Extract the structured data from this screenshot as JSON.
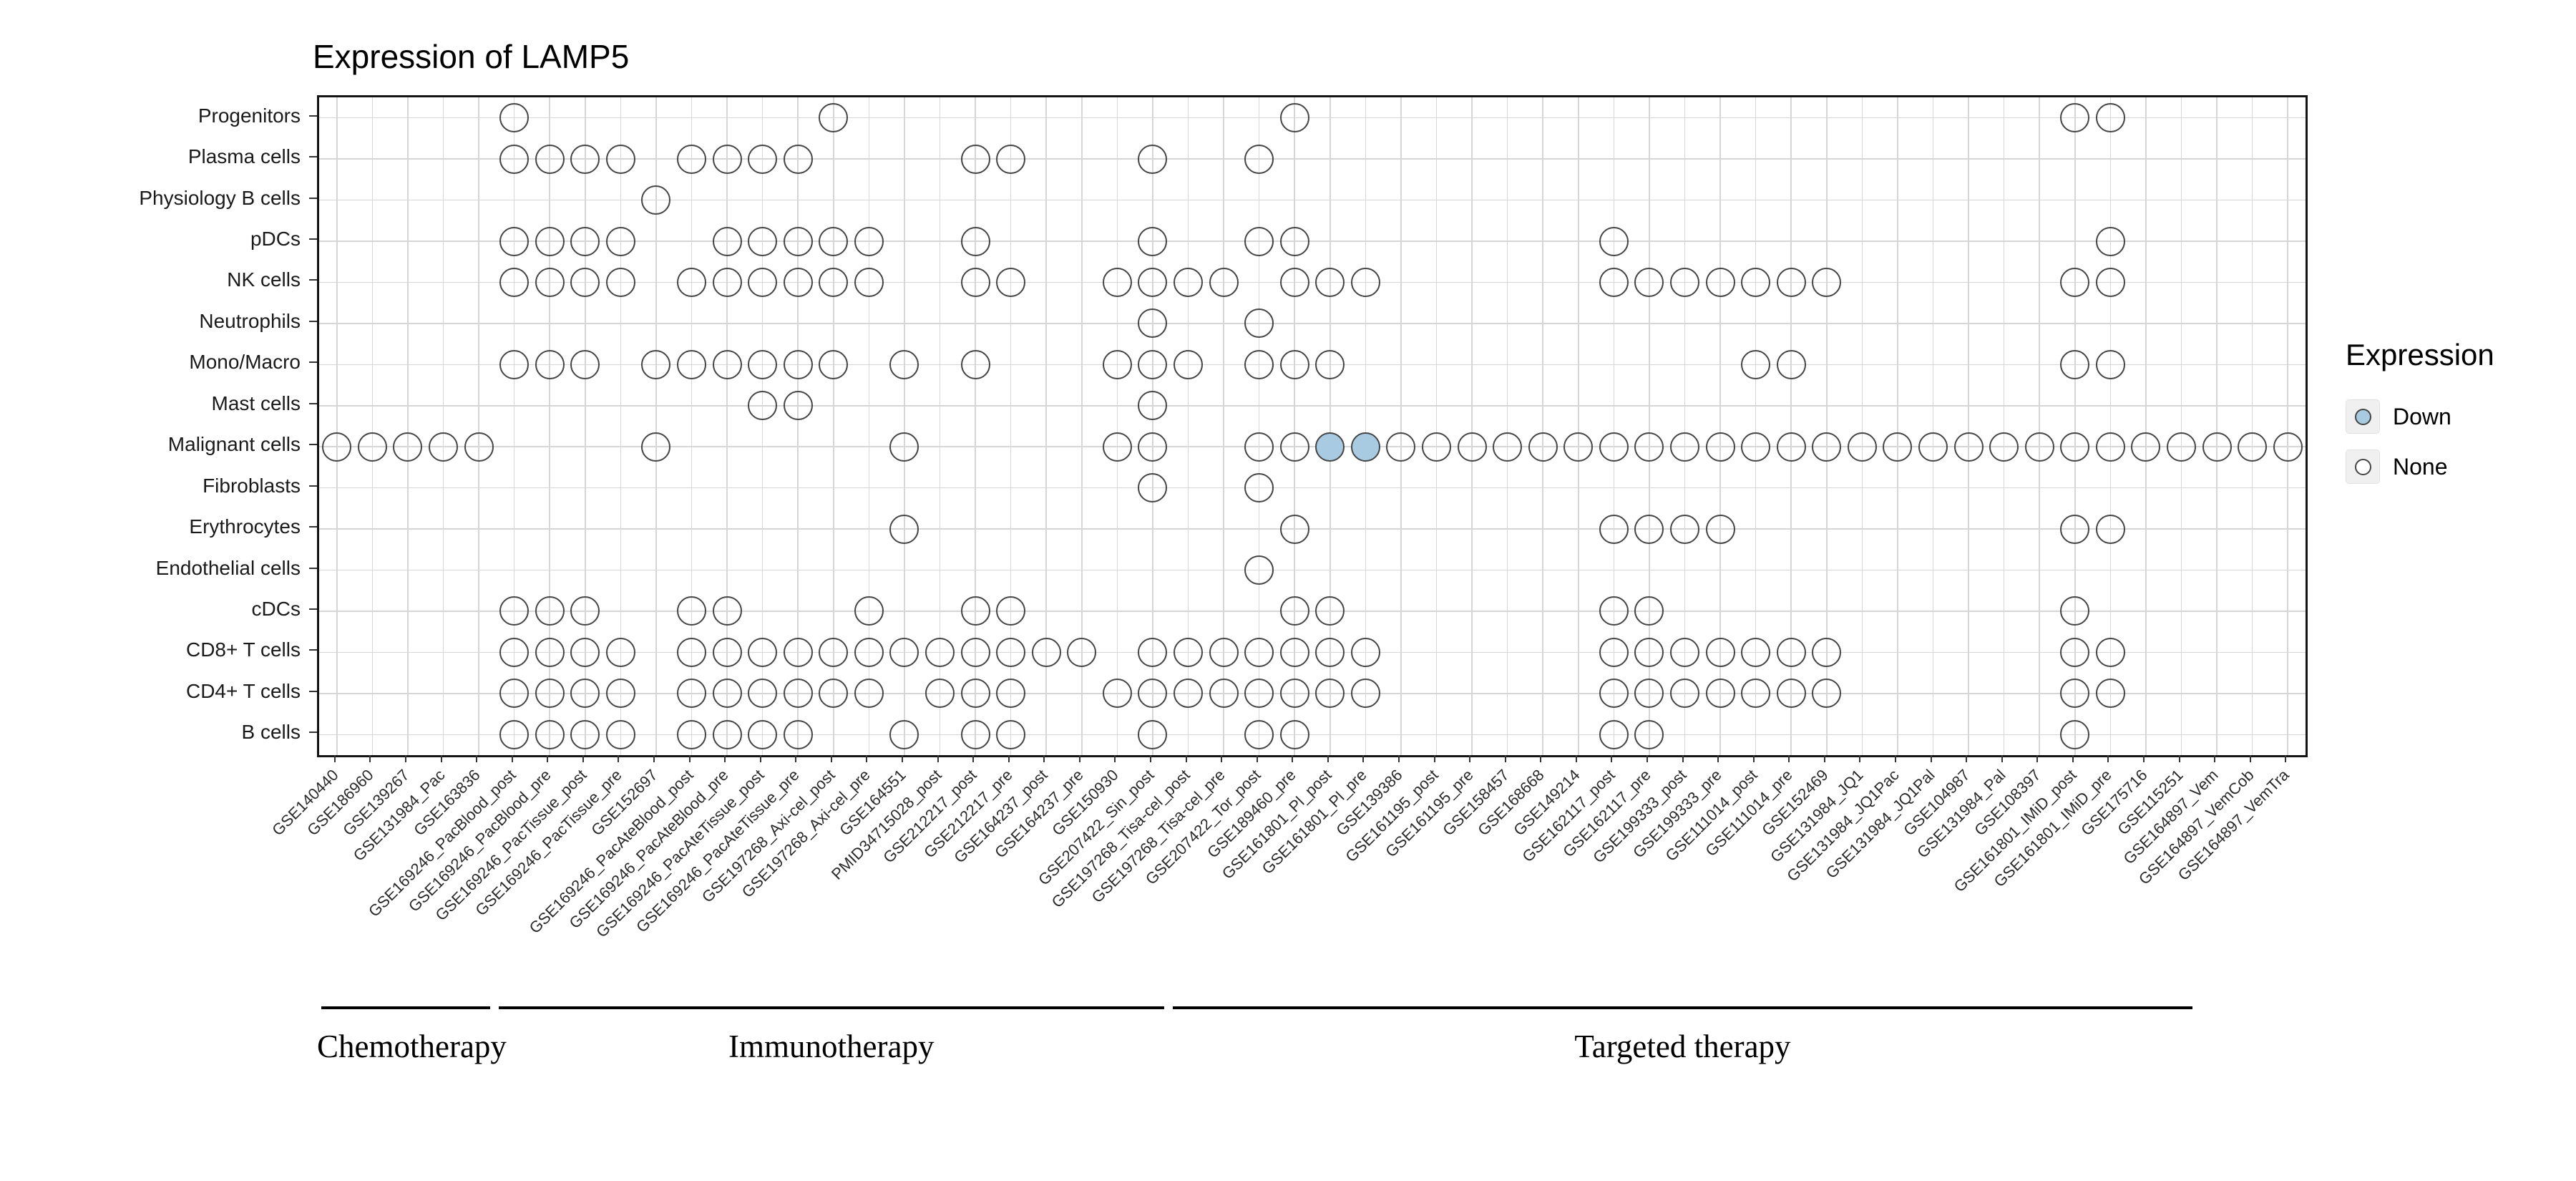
{
  "title": "Expression of LAMP5",
  "chart_data": {
    "type": "dot-matrix",
    "title": "Expression of LAMP5",
    "legend": {
      "title": "Expression",
      "items": [
        {
          "label": "Down",
          "fill": "#A8CBE2"
        },
        {
          "label": "None",
          "fill": "#FFFFFF"
        }
      ]
    },
    "rows": [
      "Progenitors",
      "Plasma cells",
      "Physiology B cells",
      "pDCs",
      "NK cells",
      "Neutrophils",
      "Mono/Macro",
      "Mast cells",
      "Malignant cells",
      "Fibroblasts",
      "Erythrocytes",
      "Endothelial cells",
      "cDCs",
      "CD8+ T cells",
      "CD4+ T cells",
      "B cells"
    ],
    "columns": [
      "GSE140440",
      "GSE186960",
      "GSE139267",
      "GSE131984_Pac",
      "GSE163836",
      "GSE169246_PacBlood_post",
      "GSE169246_PacBlood_pre",
      "GSE169246_PacTissue_post",
      "GSE169246_PacTissue_pre",
      "GSE152697",
      "GSE169246_PacAteBlood_post",
      "GSE169246_PacAteBlood_pre",
      "GSE169246_PacAteTissue_post",
      "GSE169246_PacAteTissue_pre",
      "GSE197268_Axi-cel_post",
      "GSE197268_Axi-cel_pre",
      "GSE164551",
      "PMID34715028_post",
      "GSE212217_post",
      "GSE212217_pre",
      "GSE164237_post",
      "GSE164237_pre",
      "GSE150930",
      "GSE207422_Sin_post",
      "GSE197268_Tisa-cel_post",
      "GSE197268_Tisa-cel_pre",
      "GSE207422_Tor_post",
      "GSE189460_pre",
      "GSE161801_Pl_post",
      "GSE161801_Pl_pre",
      "GSE139386",
      "GSE161195_post",
      "GSE161195_pre",
      "GSE158457",
      "GSE168668",
      "GSE149214",
      "GSE162117_post",
      "GSE162117_pre",
      "GSE199333_post",
      "GSE199333_pre",
      "GSE111014_post",
      "GSE111014_pre",
      "GSE152469",
      "GSE131984_JQ1",
      "GSE131984_JQ1Pac",
      "GSE131984_JQ1Pal",
      "GSE104987",
      "GSE131984_Pal",
      "GSE108397",
      "GSE161801_IMiD_post",
      "GSE161801_IMiD_pre",
      "GSE175716",
      "GSE115251",
      "GSE164897_Vem",
      "GSE164897_VemCob",
      "GSE164897_VemTra"
    ],
    "groups": [
      {
        "label": "Chemotherapy",
        "start": 0,
        "end": 4
      },
      {
        "label": "Immunotherapy",
        "start": 5,
        "end": 23
      },
      {
        "label": "Targeted therapy",
        "start": 24,
        "end": 52
      }
    ],
    "cells": [
      {
        "row": "Progenitors",
        "none": [
          5,
          14,
          27,
          49,
          50
        ],
        "down": []
      },
      {
        "row": "Plasma cells",
        "none": [
          5,
          6,
          7,
          8,
          10,
          11,
          12,
          13,
          18,
          19,
          23,
          26
        ],
        "down": []
      },
      {
        "row": "Physiology B cells",
        "none": [
          9
        ],
        "down": []
      },
      {
        "row": "pDCs",
        "none": [
          5,
          6,
          7,
          8,
          11,
          12,
          13,
          14,
          15,
          18,
          23,
          26,
          27,
          36,
          50
        ],
        "down": []
      },
      {
        "row": "NK cells",
        "none": [
          5,
          6,
          7,
          8,
          10,
          11,
          12,
          13,
          14,
          15,
          18,
          19,
          22,
          23,
          24,
          25,
          27,
          28,
          29,
          36,
          37,
          38,
          39,
          40,
          41,
          42,
          49,
          50
        ],
        "down": []
      },
      {
        "row": "Neutrophils",
        "none": [
          23,
          26
        ],
        "down": []
      },
      {
        "row": "Mono/Macro",
        "none": [
          5,
          6,
          7,
          9,
          10,
          11,
          12,
          13,
          14,
          16,
          18,
          22,
          23,
          24,
          26,
          27,
          28,
          40,
          41,
          49,
          50
        ],
        "down": []
      },
      {
        "row": "Mast cells",
        "none": [
          12,
          13,
          23
        ],
        "down": []
      },
      {
        "row": "Malignant cells",
        "none": [
          0,
          1,
          2,
          3,
          4,
          9,
          16,
          22,
          23,
          26,
          27,
          30,
          31,
          32,
          33,
          34,
          35,
          36,
          37,
          38,
          39,
          40,
          41,
          42,
          43,
          44,
          45,
          46,
          47,
          48,
          49,
          50,
          51,
          52,
          53,
          54,
          55
        ],
        "down": [
          28,
          29
        ]
      },
      {
        "row": "Fibroblasts",
        "none": [
          23,
          26
        ],
        "down": []
      },
      {
        "row": "Erythrocytes",
        "none": [
          16,
          27,
          36,
          37,
          38,
          39,
          49,
          50
        ],
        "down": []
      },
      {
        "row": "Endothelial cells",
        "none": [
          26
        ],
        "down": []
      },
      {
        "row": "cDCs",
        "none": [
          5,
          6,
          7,
          10,
          11,
          15,
          18,
          19,
          27,
          28,
          36,
          37,
          49
        ],
        "down": []
      },
      {
        "row": "CD8+ T cells",
        "none": [
          5,
          6,
          7,
          8,
          10,
          11,
          12,
          13,
          14,
          15,
          16,
          17,
          18,
          19,
          20,
          21,
          23,
          24,
          25,
          26,
          27,
          28,
          29,
          36,
          37,
          38,
          39,
          40,
          41,
          42,
          49,
          50
        ],
        "down": []
      },
      {
        "row": "CD4+ T cells",
        "none": [
          5,
          6,
          7,
          8,
          10,
          11,
          12,
          13,
          14,
          15,
          17,
          18,
          19,
          22,
          23,
          24,
          25,
          26,
          27,
          28,
          29,
          36,
          37,
          38,
          39,
          40,
          41,
          42,
          49,
          50
        ],
        "down": []
      },
      {
        "row": "B cells",
        "none": [
          5,
          6,
          7,
          8,
          10,
          11,
          12,
          13,
          16,
          18,
          19,
          23,
          26,
          27,
          36,
          37,
          49
        ],
        "down": []
      }
    ],
    "layout": {
      "x_label_angle": 45,
      "legend_position": "right",
      "grid": "on"
    }
  }
}
